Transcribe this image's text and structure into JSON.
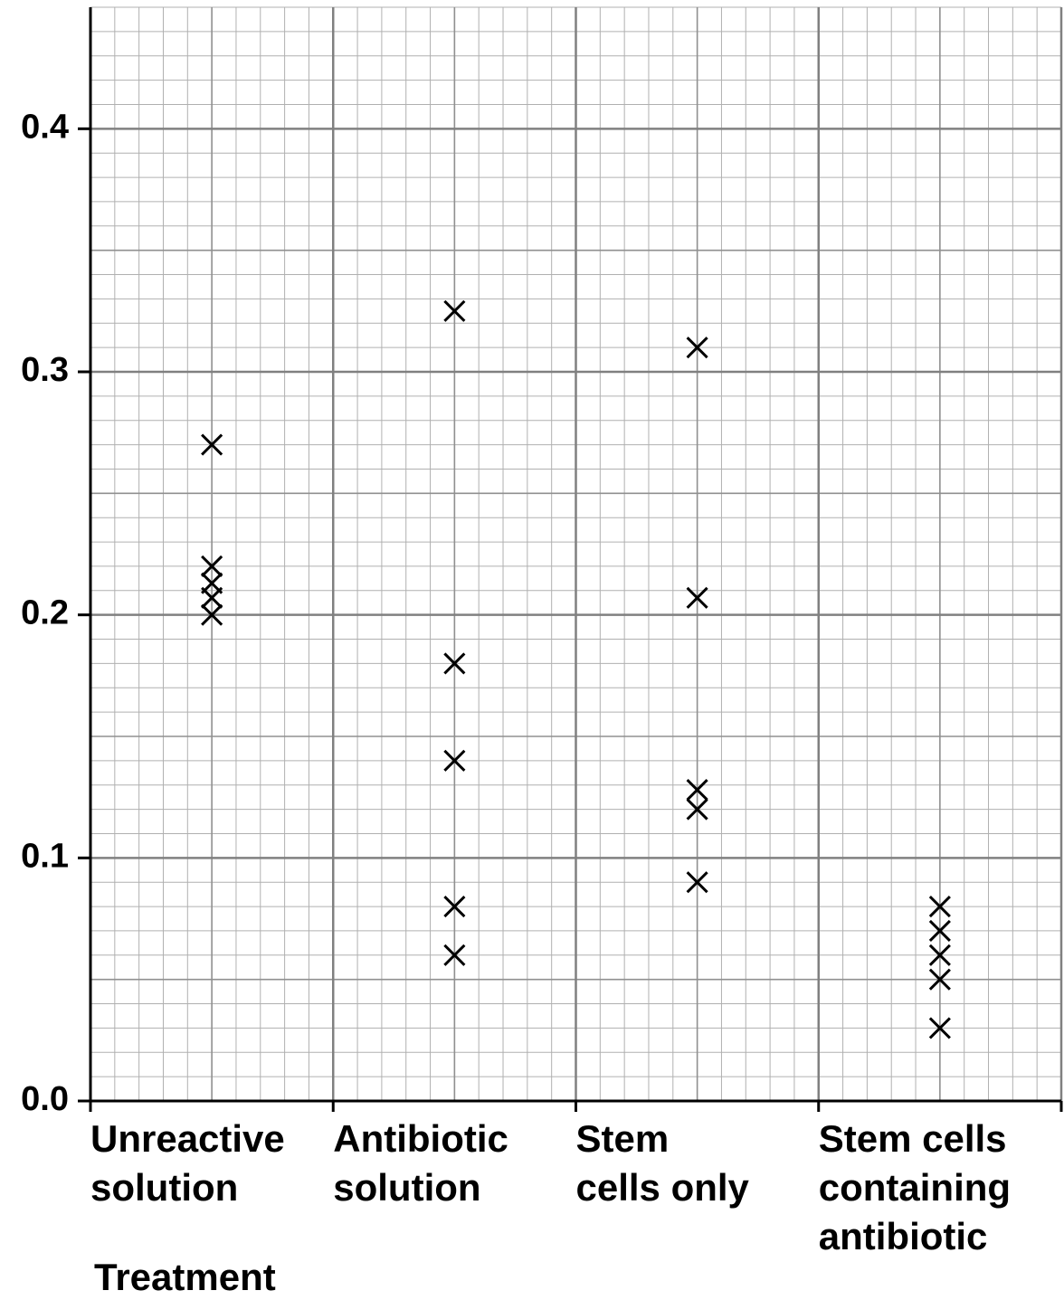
{
  "chart_data": {
    "type": "scatter",
    "x_label": "Treatment",
    "categories": [
      [
        "Unreactive",
        "solution"
      ],
      [
        "Antibiotic",
        "solution"
      ],
      [
        "Stem",
        "cells only"
      ],
      [
        "Stem cells",
        "containing",
        "antibiotic"
      ]
    ],
    "values": [
      [
        0.27,
        0.22,
        0.213,
        0.207,
        0.2
      ],
      [
        0.325,
        0.18,
        0.14,
        0.08,
        0.06
      ],
      [
        0.31,
        0.207,
        0.128,
        0.12,
        0.09
      ],
      [
        0.08,
        0.07,
        0.06,
        0.05,
        0.03
      ]
    ],
    "color": "#000000",
    "ylim": [
      0,
      0.45
    ],
    "yticks": [
      {
        "value": 0,
        "label": "0.0"
      },
      0.1,
      0.2,
      0.3,
      0.4
    ],
    "grid": true
  }
}
